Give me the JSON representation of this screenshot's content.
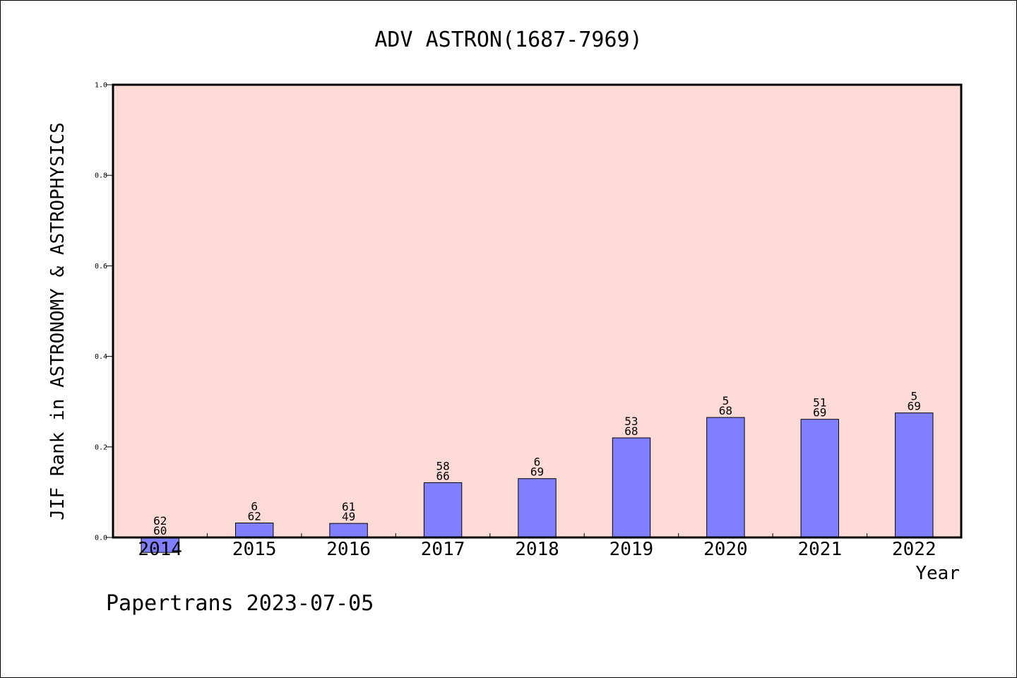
{
  "chart_data": {
    "type": "bar",
    "title": "ADV ASTRON(1687-7969)",
    "xlabel": "Year",
    "ylabel": "JIF Rank in ASTRONOMY & ASTROPHYSICS",
    "categories": [
      "2014",
      "2015",
      "2016",
      "2017",
      "2018",
      "2019",
      "2020",
      "2021",
      "2022"
    ],
    "values": [
      -0.033,
      0.032,
      0.031,
      0.121,
      0.13,
      0.22,
      0.265,
      0.261,
      0.275
    ],
    "bar_labels": [
      {
        "top": "62",
        "bottom": "60"
      },
      {
        "top": "6",
        "bottom": "62"
      },
      {
        "top": "61",
        "bottom": "49"
      },
      {
        "top": "58",
        "bottom": "66"
      },
      {
        "top": "6",
        "bottom": "69"
      },
      {
        "top": "53",
        "bottom": "68"
      },
      {
        "top": "5",
        "bottom": "68"
      },
      {
        "top": "51",
        "bottom": "69"
      },
      {
        "top": "5",
        "bottom": "69"
      }
    ],
    "ylim": [
      0,
      1.0
    ],
    "yticks": [
      "0.0",
      "0.2",
      "0.4",
      "0.6",
      "0.8",
      "1.0"
    ],
    "grid": false,
    "colors": {
      "plot_background": "#fedbd7",
      "bar_fill": "#8080ff",
      "bar_edge": "#000000"
    }
  },
  "footer": {
    "text": "Papertrans 2023-07-05"
  }
}
